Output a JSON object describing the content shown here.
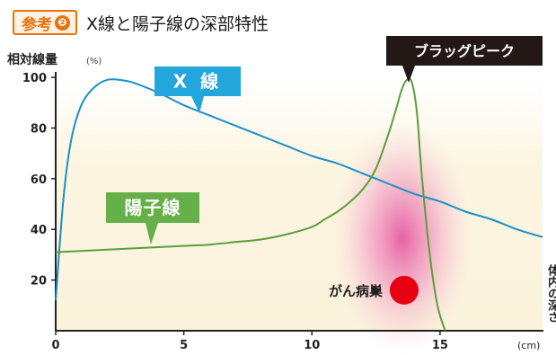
{
  "header": {
    "ref_label": "参考",
    "ref_number": "❷",
    "title": "X線と陽子線の深部特性"
  },
  "chart_data": {
    "type": "line",
    "ylabel": "相対線量",
    "ylabel_unit": "(%)",
    "xunit": "(cm)",
    "xlim": [
      0,
      19
    ],
    "ylim": [
      0,
      105
    ],
    "xticks": [
      0,
      5,
      10,
      15
    ],
    "yticks": [
      20,
      40,
      60,
      80,
      100
    ],
    "series": [
      {
        "name": "X 線",
        "color": "#1a8fc9",
        "x": [
          0,
          0.3,
          0.6,
          1.0,
          1.5,
          2.0,
          2.5,
          3.0,
          4.0,
          5.0,
          6.0,
          7.0,
          8.0,
          9.0,
          10.0,
          11.0,
          12.0,
          13.0,
          14.0,
          15.0,
          16.0,
          17.0,
          18.0,
          19.0
        ],
        "values": [
          12,
          52,
          75,
          89,
          96,
          99,
          99,
          98,
          94,
          89,
          85,
          81,
          77,
          73,
          69,
          66,
          62,
          58,
          54,
          51,
          47,
          44,
          40,
          37
        ]
      },
      {
        "name": "陽子線",
        "color": "#5a9f3a",
        "x": [
          0,
          1.0,
          2.0,
          3.0,
          4.0,
          5.0,
          6.0,
          7.0,
          8.0,
          9.0,
          10.0,
          10.5,
          11.0,
          11.5,
          12.0,
          12.5,
          13.0,
          13.3,
          13.5,
          13.7,
          13.9,
          14.1,
          14.3,
          14.6,
          14.9,
          15.2
        ],
        "values": [
          31,
          31.5,
          32,
          32.5,
          33,
          33.5,
          34,
          35,
          36,
          38,
          41,
          44,
          47,
          51,
          56,
          64,
          78,
          88,
          95,
          99,
          98,
          86,
          60,
          30,
          10,
          0
        ]
      }
    ],
    "annotations": {
      "bragg_peak": "ブラッグピーク",
      "tumor": "がん病巣",
      "tumor_x": 13.6,
      "tumor_y": 16,
      "side_label": "体内の深さ"
    }
  }
}
